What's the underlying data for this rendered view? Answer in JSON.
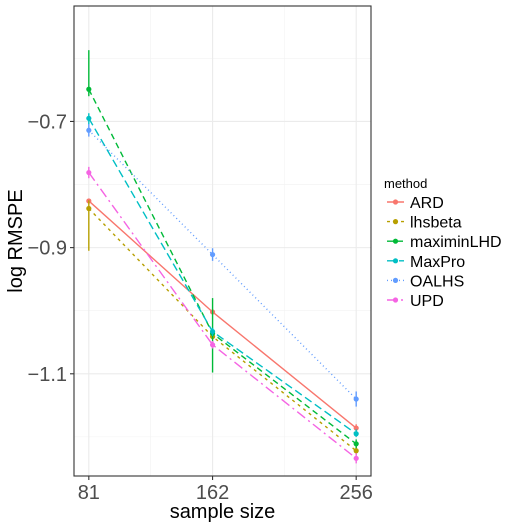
{
  "chart_data": {
    "type": "line",
    "xlabel": "sample size",
    "ylabel": "log RMSPE",
    "x": [
      81,
      162,
      256
    ],
    "x_ticks": [
      81,
      162,
      256
    ],
    "x_tick_labels": [
      "81",
      "162",
      "256"
    ],
    "xlim": [
      71.3,
      265.7
    ],
    "y_ticks": [
      -0.7,
      -0.9,
      -1.1
    ],
    "y_tick_labels": [
      "−0.7",
      "−0.9",
      "−1.1"
    ],
    "ylim": [
      -1.262,
      -0.517
    ],
    "grid": true,
    "legend": {
      "title": "method",
      "position": "right"
    },
    "series": [
      {
        "name": "ARD",
        "color": "#F8766D",
        "dash": "solid",
        "values": [
          -0.826,
          -1.002,
          -1.186
        ],
        "err_low": [
          -0.826,
          -1.002,
          -1.194
        ],
        "err_high": [
          -0.826,
          -1.002,
          -1.18
        ]
      },
      {
        "name": "lhsbeta",
        "color": "#B79F00",
        "dash": "3,4",
        "values": [
          -0.838,
          -1.041,
          -1.222
        ],
        "err_low": [
          -0.905,
          -1.045,
          -1.229
        ],
        "err_high": [
          -0.825,
          -1.035,
          -1.214
        ]
      },
      {
        "name": "maximinLHD",
        "color": "#00BA38",
        "dash": "6,4",
        "values": [
          -0.649,
          -1.036,
          -1.211
        ],
        "err_low": [
          -0.66,
          -1.098,
          -1.218
        ],
        "err_high": [
          -0.587,
          -0.98,
          -1.204
        ]
      },
      {
        "name": "MaxPro",
        "color": "#00BFC4",
        "dash": "8,4",
        "values": [
          -0.695,
          -1.033,
          -1.195
        ],
        "err_low": [
          -0.705,
          -1.04,
          -1.2
        ],
        "err_high": [
          -0.687,
          -1.027,
          -1.188
        ]
      },
      {
        "name": "OALHS",
        "color": "#619CFF",
        "dash": "1,3",
        "values": [
          -0.714,
          -0.911,
          -1.14
        ],
        "err_low": [
          -0.724,
          -0.921,
          -1.152
        ],
        "err_high": [
          -0.704,
          -0.901,
          -1.128
        ]
      },
      {
        "name": "UPD",
        "color": "#F564E3",
        "dash": "10,4,2,4",
        "values": [
          -0.781,
          -1.054,
          -1.234
        ],
        "err_low": [
          -0.79,
          -1.06,
          -1.242
        ],
        "err_high": [
          -0.772,
          -1.048,
          -1.226
        ]
      }
    ]
  }
}
